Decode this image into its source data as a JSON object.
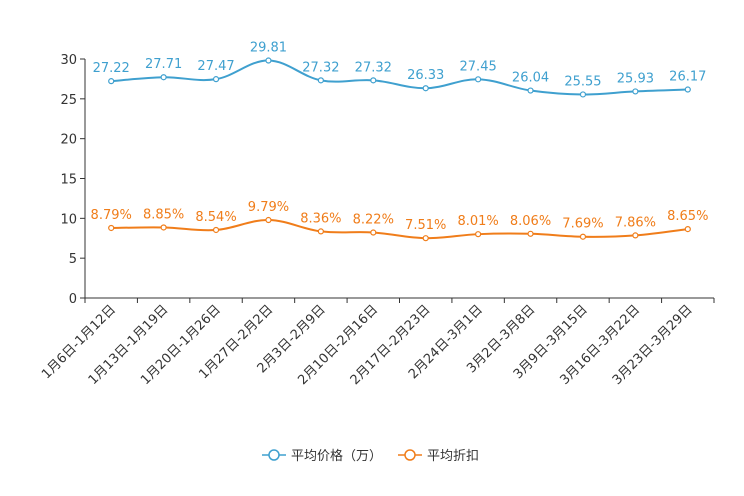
{
  "chart_data": {
    "type": "line",
    "title": "",
    "xlabel": "",
    "ylabel": "",
    "ylim": [
      0,
      30
    ],
    "yticks": [
      0,
      5,
      10,
      15,
      20,
      25,
      30
    ],
    "legend_position": "bottom-center",
    "categories": [
      "1月6日-1月12日",
      "1月13日-1月19日",
      "1月20日-1月26日",
      "1月27日-2月2日",
      "2月3日-2月9日",
      "2月10日-2月16日",
      "2月17日-2月23日",
      "2月24日-3月1日",
      "3月2日-3月8日",
      "3月9日-3月15日",
      "3月16日-3月22日",
      "3月23日-3月29日"
    ],
    "series": [
      {
        "name": "平均价格（万）",
        "color": "#3fa0cf",
        "values": [
          27.22,
          27.71,
          27.47,
          29.81,
          27.32,
          27.32,
          26.33,
          27.45,
          26.04,
          25.55,
          25.93,
          26.17
        ],
        "labels": [
          "27.22",
          "27.71",
          "27.47",
          "29.81",
          "27.32",
          "27.32",
          "26.33",
          "27.45",
          "26.04",
          "25.55",
          "25.93",
          "26.17"
        ]
      },
      {
        "name": "平均折扣",
        "color": "#f07d1a",
        "values": [
          8.79,
          8.85,
          8.54,
          9.79,
          8.36,
          8.22,
          7.51,
          8.01,
          8.06,
          7.69,
          7.86,
          8.65
        ],
        "labels": [
          "8.79%",
          "8.85%",
          "8.54%",
          "9.79%",
          "8.36%",
          "8.22%",
          "7.51%",
          "8.01%",
          "8.06%",
          "7.69%",
          "7.86%",
          "8.65%"
        ]
      }
    ]
  }
}
